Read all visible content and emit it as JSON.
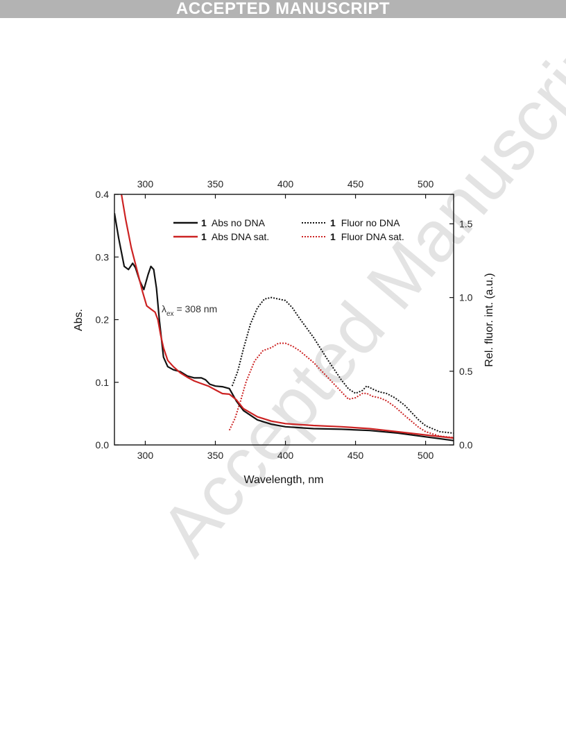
{
  "banner": {
    "text": "ACCEPTED MANUSCRIPT"
  },
  "watermark": {
    "text": "Accepted Manuscript"
  },
  "chart_data": {
    "type": "line",
    "xlabel": "Wavelength, nm",
    "ylabel_left": "Abs.",
    "ylabel_right": "Rel. fluor. int. (a.u.)",
    "xlim": [
      278,
      520
    ],
    "ylim_left": [
      0,
      0.4
    ],
    "ylim_right": [
      0,
      1.7
    ],
    "x_ticks": [
      300,
      350,
      400,
      450,
      500
    ],
    "y_ticks_left": [
      "0.0",
      "0.1",
      "0.2",
      "0.3",
      "0.4"
    ],
    "y_ticks_right": [
      "0.0",
      "0.5",
      "1.0",
      "1.5"
    ],
    "grid": false,
    "legend_position": "top",
    "annotation": {
      "symbol": "λ",
      "subscript": "ex",
      "text": " = 308 nm"
    },
    "colors": {
      "black": "#111111",
      "red": "#cc2222"
    },
    "series": [
      {
        "name": "Abs no DNA",
        "label_num": "1",
        "axis": "left",
        "style": "solid",
        "color": "#111111",
        "x": [
          278,
          281,
          285,
          288,
          291,
          293,
          296,
          299,
          302,
          304,
          306,
          308,
          310,
          313,
          316,
          320,
          325,
          330,
          335,
          340,
          343,
          346,
          350,
          355,
          360,
          365,
          370,
          380,
          390,
          400,
          420,
          440,
          460,
          480,
          500,
          520
        ],
        "y": [
          0.37,
          0.33,
          0.285,
          0.28,
          0.29,
          0.283,
          0.262,
          0.248,
          0.272,
          0.285,
          0.28,
          0.25,
          0.2,
          0.14,
          0.125,
          0.12,
          0.117,
          0.11,
          0.107,
          0.107,
          0.104,
          0.097,
          0.094,
          0.093,
          0.09,
          0.07,
          0.055,
          0.04,
          0.033,
          0.029,
          0.026,
          0.025,
          0.023,
          0.019,
          0.013,
          0.007
        ]
      },
      {
        "name": "Abs DNA sat.",
        "label_num": "1",
        "axis": "left",
        "style": "solid",
        "color": "#cc2222",
        "x": [
          283,
          286,
          290,
          294,
          298,
          301,
          304,
          307,
          309,
          311,
          313,
          316,
          320,
          325,
          330,
          335,
          340,
          345,
          350,
          355,
          360,
          365,
          370,
          380,
          390,
          400,
          420,
          440,
          460,
          480,
          500,
          520
        ],
        "y": [
          0.4,
          0.36,
          0.315,
          0.28,
          0.245,
          0.222,
          0.217,
          0.212,
          0.2,
          0.175,
          0.155,
          0.135,
          0.125,
          0.115,
          0.108,
          0.102,
          0.098,
          0.094,
          0.088,
          0.082,
          0.081,
          0.072,
          0.058,
          0.045,
          0.038,
          0.034,
          0.031,
          0.029,
          0.026,
          0.021,
          0.016,
          0.011
        ]
      },
      {
        "name": "Fluor no DNA",
        "label_num": "1",
        "axis": "right",
        "style": "dotted",
        "color": "#111111",
        "x": [
          362,
          366,
          370,
          375,
          380,
          385,
          390,
          395,
          400,
          405,
          410,
          420,
          430,
          440,
          445,
          450,
          455,
          458,
          462,
          467,
          472,
          478,
          485,
          490,
          495,
          500,
          510,
          520
        ],
        "y": [
          0.4,
          0.5,
          0.65,
          0.82,
          0.93,
          0.99,
          1.0,
          0.99,
          0.98,
          0.93,
          0.86,
          0.73,
          0.58,
          0.44,
          0.38,
          0.35,
          0.37,
          0.4,
          0.38,
          0.36,
          0.35,
          0.32,
          0.27,
          0.22,
          0.17,
          0.13,
          0.09,
          0.08
        ]
      },
      {
        "name": "Fluor DNA sat.",
        "label_num": "1",
        "axis": "right",
        "style": "dotted",
        "color": "#cc2222",
        "x": [
          360,
          364,
          368,
          372,
          378,
          384,
          390,
          395,
          400,
          405,
          410,
          420,
          430,
          440,
          445,
          450,
          455,
          458,
          462,
          467,
          472,
          478,
          485,
          490,
          495,
          500,
          510,
          520
        ],
        "y": [
          0.1,
          0.18,
          0.3,
          0.43,
          0.57,
          0.64,
          0.66,
          0.69,
          0.69,
          0.67,
          0.64,
          0.56,
          0.46,
          0.36,
          0.31,
          0.32,
          0.35,
          0.35,
          0.33,
          0.32,
          0.3,
          0.26,
          0.2,
          0.16,
          0.12,
          0.09,
          0.06,
          0.05
        ]
      }
    ]
  }
}
